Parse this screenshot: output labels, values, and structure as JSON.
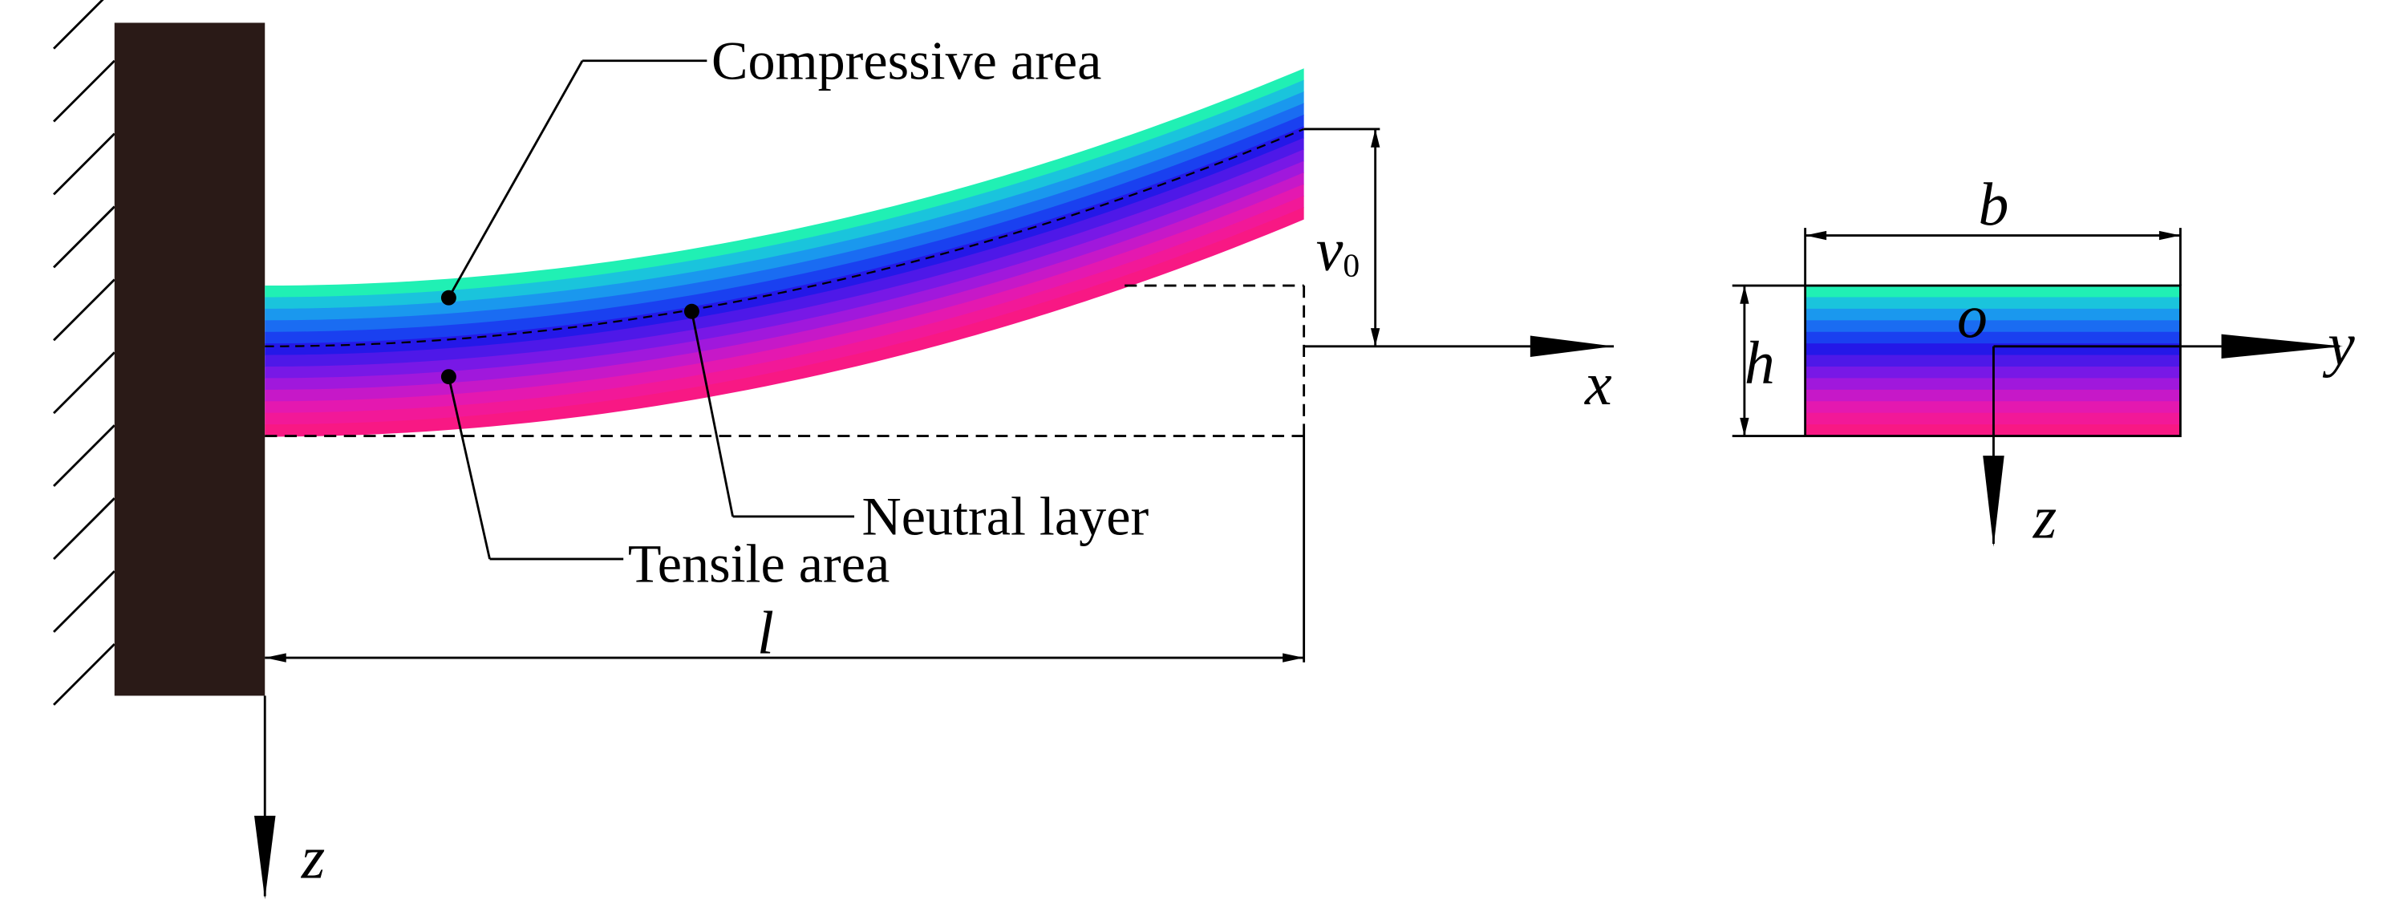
{
  "annotations": {
    "compressive": "Compressive area",
    "neutral": "Neutral layer",
    "tensile": "Tensile area"
  },
  "dimensions": {
    "length": "l",
    "deflection": "v",
    "deflection_subscript": "0",
    "width": "b",
    "height": "h"
  },
  "axes": {
    "beam_x": "x",
    "beam_z": "z",
    "section_origin": "o",
    "section_y": "y",
    "section_z": "z"
  }
}
